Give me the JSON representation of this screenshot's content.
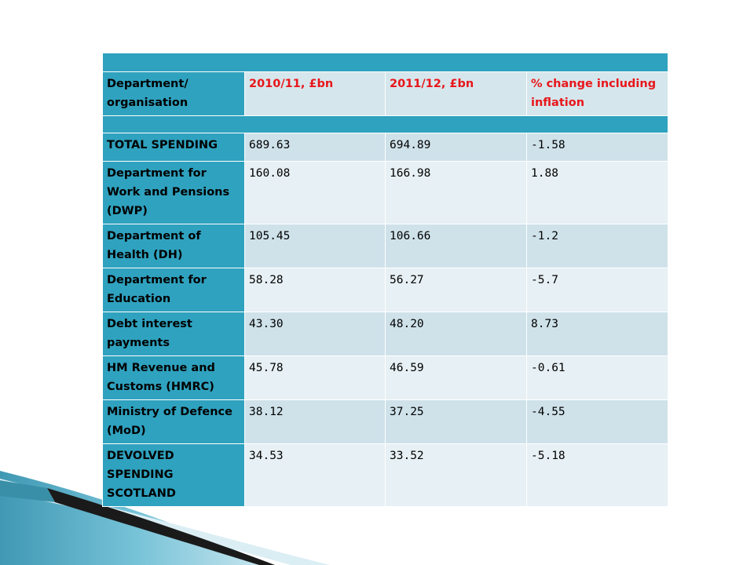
{
  "table": {
    "headers": [
      "Department/ organisation",
      "2010/11, £bn",
      "2011/12, £bn",
      "% change including inflation"
    ],
    "rows": [
      {
        "name": "TOTAL SPENDING",
        "v2010": "689.63",
        "v2011": "694.89",
        "change": "-1.58"
      },
      {
        "name": "Department for Work and Pensions (DWP)",
        "v2010": "160.08",
        "v2011": "166.98",
        "change": "1.88"
      },
      {
        "name": "Department of Health (DH)",
        "v2010": "105.45",
        "v2011": "106.66",
        "change": "-1.2"
      },
      {
        "name": "Department for Education",
        "v2010": "58.28",
        "v2011": "56.27",
        "change": "-5.7"
      },
      {
        "name": "Debt interest payments",
        "v2010": "43.30",
        "v2011": "48.20",
        "change": "8.73"
      },
      {
        "name": "HM Revenue and Customs (HMRC)",
        "v2010": "45.78",
        "v2011": "46.59",
        "change": "-0.61"
      },
      {
        "name": "Ministry of Defence (MoD)",
        "v2010": "38.12",
        "v2011": "37.25",
        "change": "-4.55"
      },
      {
        "name": "DEVOLVED SPENDING SCOTLAND",
        "v2010": "34.53",
        "v2011": "33.52",
        "change": "-5.18"
      }
    ]
  },
  "colors": {
    "accent": "#2fa2bf",
    "row_dark": "#cfe2ea",
    "row_light": "#e7f0f4",
    "header_red": "#e8161b"
  }
}
